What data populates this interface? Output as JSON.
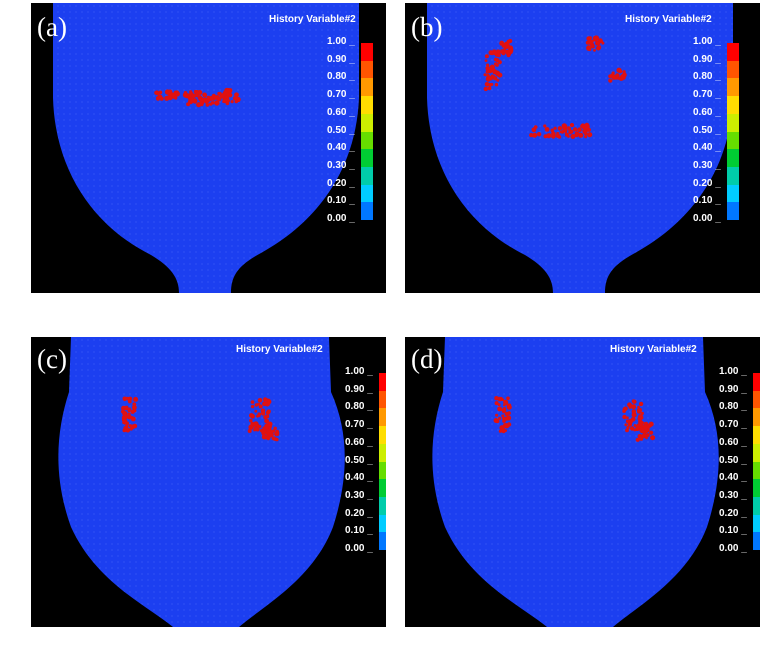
{
  "colorbar": {
    "title": "History Variable#2",
    "ticks": [
      "1.00",
      "0.90",
      "0.80",
      "0.70",
      "0.60",
      "0.50",
      "0.40",
      "0.30",
      "0.20",
      "0.10",
      "0.00"
    ],
    "colors": [
      "#ff0000",
      "#ff5500",
      "#ff9900",
      "#ffdd00",
      "#ccee00",
      "#66dd00",
      "#00cc33",
      "#00ccaa",
      "#00ccff",
      "#0077ff",
      "#0000ff"
    ]
  },
  "colors": {
    "mesh": "#1c3ff0",
    "damage": "#e01010",
    "background": "#000000"
  },
  "panels": [
    {
      "label": "(a)"
    },
    {
      "label": "(b)"
    },
    {
      "label": "(c)"
    },
    {
      "label": "(d)"
    }
  ]
}
